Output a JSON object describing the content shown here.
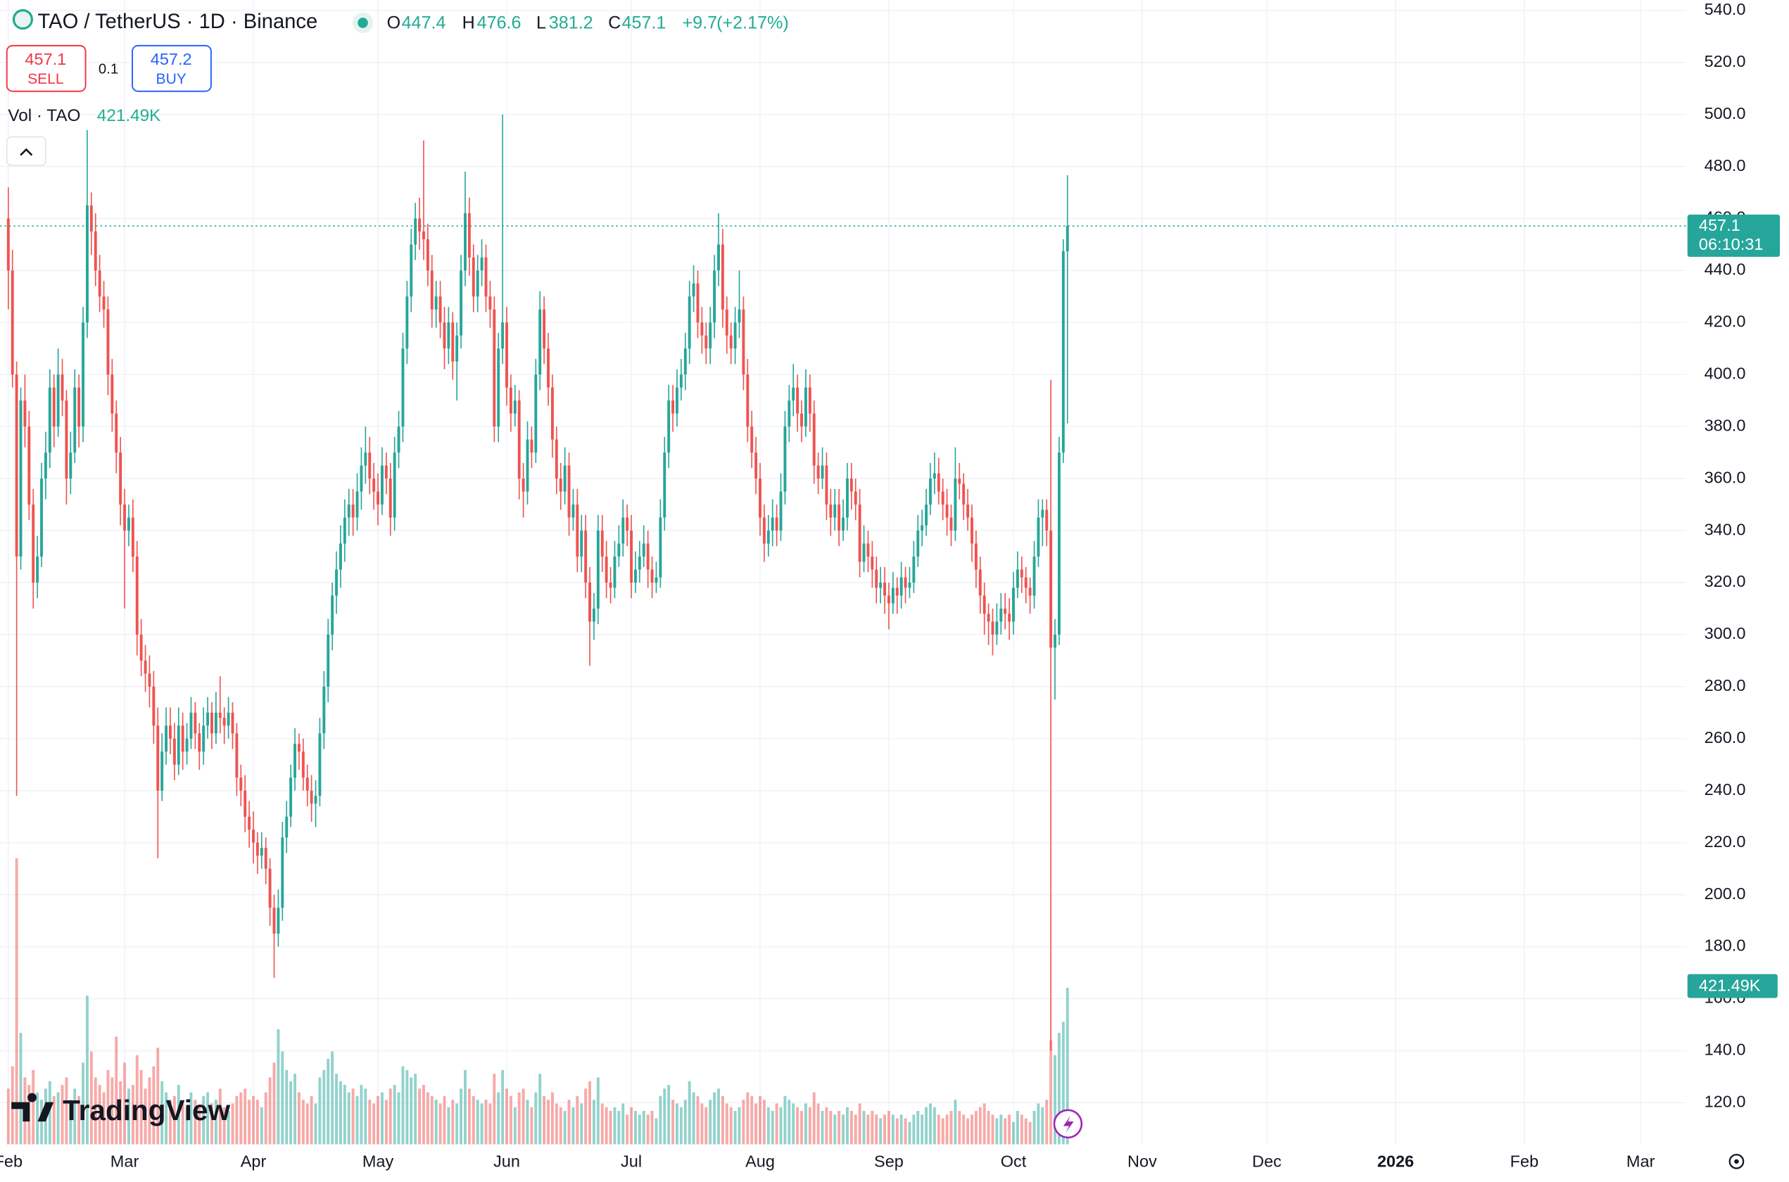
{
  "chart_data": {
    "type": "candlestick",
    "title": "TAO / TetherUS · 1D · Binance",
    "ohlc_labels": [
      "O",
      "H",
      "L",
      "C"
    ],
    "change": "+9.7",
    "change_pct": "(+2.17%)",
    "sell_label": "SELL",
    "buy_label": "BUY",
    "buy_price": "457.2",
    "quantity": "0.1",
    "volume_title": "Vol · TAO",
    "volume_last_label": "421.49K",
    "countdown": "06:10:31",
    "brand": "TradingView",
    "up_color": "#26a69a",
    "down_color": "#ef5350",
    "grid": true,
    "xlim": [
      -2,
      404
    ],
    "xticks": [
      {
        "value": 0,
        "label": "Feb"
      },
      {
        "value": 28,
        "label": "Mar"
      },
      {
        "value": 59,
        "label": "Apr"
      },
      {
        "value": 89,
        "label": "May"
      },
      {
        "value": 120,
        "label": "Jun"
      },
      {
        "value": 150,
        "label": "Jul"
      },
      {
        "value": 181,
        "label": "Aug"
      },
      {
        "value": 212,
        "label": "Sep"
      },
      {
        "value": 242,
        "label": "Oct"
      },
      {
        "value": 273,
        "label": "Nov"
      },
      {
        "value": 303,
        "label": "Dec"
      },
      {
        "value": 334,
        "label": "2026",
        "bold": true
      },
      {
        "value": 365,
        "label": "Feb"
      },
      {
        "value": 393,
        "label": "Mar"
      }
    ],
    "ylim": [
      104,
      544
    ],
    "yticks": [
      {
        "value": 120,
        "label": "120.0"
      },
      {
        "value": 140,
        "label": "140.0"
      },
      {
        "value": 160,
        "label": "160.0"
      },
      {
        "value": 180,
        "label": "180.0"
      },
      {
        "value": 200,
        "label": "200.0"
      },
      {
        "value": 220,
        "label": "220.0"
      },
      {
        "value": 240,
        "label": "240.0"
      },
      {
        "value": 260,
        "label": "260.0"
      },
      {
        "value": 280,
        "label": "280.0"
      },
      {
        "value": 300,
        "label": "300.0"
      },
      {
        "value": 320,
        "label": "320.0"
      },
      {
        "value": 340,
        "label": "340.0"
      },
      {
        "value": 360,
        "label": "360.0"
      },
      {
        "value": 380,
        "label": "380.0"
      },
      {
        "value": 400,
        "label": "400.0"
      },
      {
        "value": 420,
        "label": "420.0"
      },
      {
        "value": 440,
        "label": "440.0"
      },
      {
        "value": 460,
        "label": "460.0"
      },
      {
        "value": 480,
        "label": "480.0"
      },
      {
        "value": 500,
        "label": "500.0"
      },
      {
        "value": 520,
        "label": "520.0"
      },
      {
        "value": 540,
        "label": "540.0"
      }
    ],
    "y2lim": [
      0,
      3080000
    ],
    "open": [
      460,
      440,
      400,
      330,
      390,
      380,
      350,
      320,
      330,
      360,
      370,
      395,
      380,
      400,
      390,
      360,
      370,
      395,
      380,
      420,
      465,
      455,
      440,
      430,
      425,
      400,
      385,
      370,
      350,
      340,
      345,
      330,
      300,
      290,
      285,
      280,
      265,
      240,
      255,
      265,
      260,
      250,
      265,
      255,
      260,
      270,
      262,
      255,
      265,
      270,
      262,
      270,
      268,
      265,
      270,
      262,
      245,
      240,
      230,
      225,
      220,
      215,
      218,
      210,
      195,
      185,
      195,
      222,
      230,
      245,
      258,
      255,
      245,
      240,
      235,
      238,
      262,
      280,
      300,
      315,
      325,
      335,
      345,
      350,
      345,
      355,
      365,
      370,
      360,
      355,
      350,
      365,
      360,
      345,
      370,
      380,
      410,
      430,
      450,
      460,
      455,
      452,
      440,
      425,
      430,
      420,
      410,
      420,
      405,
      415,
      440,
      462,
      445,
      430,
      440,
      445,
      430,
      425,
      380,
      410,
      420,
      395,
      385,
      390,
      360,
      355,
      375,
      370,
      400,
      425,
      410,
      395,
      375,
      360,
      355,
      365,
      345,
      350,
      330,
      340,
      320,
      305,
      310,
      340,
      330,
      320,
      318,
      330,
      335,
      345,
      340,
      320,
      325,
      330,
      335,
      325,
      320,
      322,
      345,
      370,
      390,
      385,
      395,
      400,
      410,
      430,
      435,
      420,
      415,
      410,
      420,
      440,
      450,
      425,
      415,
      410,
      420,
      425,
      400,
      380,
      370,
      360,
      345,
      335,
      340,
      345,
      340,
      355,
      380,
      390,
      395,
      385,
      380,
      395,
      385,
      365,
      360,
      365,
      350,
      345,
      350,
      340,
      345,
      360,
      355,
      350,
      328,
      335,
      330,
      325,
      318,
      320,
      315,
      312,
      318,
      315,
      322,
      318,
      320,
      330,
      340,
      342,
      350,
      360,
      362,
      355,
      350,
      345,
      340,
      360,
      358,
      350,
      345,
      335,
      325,
      315,
      308,
      305,
      300,
      305,
      310,
      308,
      305,
      318,
      325,
      322,
      318,
      315,
      330,
      345,
      348,
      340,
      295,
      300,
      370,
      447.4
    ],
    "high": [
      472,
      448,
      405,
      395,
      400,
      386,
      356,
      338,
      366,
      378,
      402,
      400,
      410,
      406,
      394,
      378,
      402,
      400,
      426,
      494,
      470,
      462,
      446,
      436,
      430,
      406,
      390,
      376,
      356,
      350,
      352,
      336,
      306,
      296,
      292,
      286,
      272,
      262,
      272,
      272,
      266,
      272,
      270,
      266,
      276,
      274,
      266,
      272,
      276,
      274,
      278,
      284,
      272,
      276,
      274,
      266,
      250,
      246,
      236,
      232,
      224,
      224,
      222,
      214,
      200,
      202,
      228,
      236,
      250,
      264,
      262,
      260,
      250,
      246,
      244,
      268,
      286,
      306,
      320,
      332,
      342,
      352,
      356,
      356,
      362,
      372,
      380,
      376,
      366,
      362,
      372,
      370,
      366,
      376,
      386,
      416,
      436,
      456,
      466,
      468,
      490,
      458,
      446,
      436,
      436,
      426,
      426,
      424,
      420,
      446,
      478,
      468,
      450,
      446,
      452,
      450,
      436,
      430,
      416,
      500,
      426,
      400,
      396,
      394,
      366,
      382,
      380,
      406,
      432,
      430,
      416,
      400,
      380,
      366,
      372,
      370,
      356,
      356,
      346,
      346,
      326,
      316,
      346,
      346,
      336,
      326,
      336,
      342,
      352,
      350,
      346,
      332,
      336,
      342,
      340,
      330,
      328,
      352,
      376,
      396,
      396,
      402,
      406,
      416,
      436,
      442,
      440,
      426,
      420,
      426,
      446,
      462,
      456,
      430,
      420,
      426,
      440,
      430,
      406,
      386,
      376,
      366,
      350,
      346,
      352,
      350,
      362,
      386,
      396,
      404,
      400,
      390,
      402,
      400,
      390,
      370,
      372,
      370,
      356,
      356,
      356,
      352,
      366,
      366,
      360,
      356,
      342,
      340,
      336,
      330,
      326,
      326,
      320,
      324,
      322,
      328,
      326,
      326,
      336,
      346,
      348,
      356,
      366,
      370,
      368,
      360,
      356,
      350,
      372,
      366,
      362,
      356,
      350,
      340,
      330,
      320,
      312,
      310,
      312,
      316,
      316,
      314,
      324,
      332,
      330,
      326,
      322,
      336,
      352,
      352,
      352,
      398,
      306,
      376,
      452,
      476.6
    ],
    "low": [
      425,
      395,
      238,
      325,
      372,
      344,
      310,
      314,
      326,
      352,
      364,
      372,
      376,
      384,
      350,
      354,
      366,
      372,
      374,
      414,
      446,
      434,
      424,
      418,
      392,
      378,
      362,
      342,
      310,
      334,
      324,
      292,
      284,
      278,
      272,
      258,
      214,
      236,
      250,
      254,
      244,
      246,
      248,
      250,
      256,
      256,
      248,
      250,
      260,
      256,
      258,
      262,
      258,
      260,
      256,
      238,
      234,
      224,
      218,
      212,
      208,
      210,
      204,
      188,
      168,
      180,
      190,
      216,
      226,
      240,
      248,
      240,
      234,
      228,
      226,
      234,
      256,
      274,
      294,
      308,
      318,
      328,
      338,
      338,
      340,
      348,
      358,
      354,
      348,
      342,
      346,
      354,
      338,
      340,
      364,
      374,
      404,
      424,
      444,
      448,
      444,
      434,
      418,
      418,
      414,
      402,
      404,
      398,
      390,
      410,
      434,
      438,
      424,
      424,
      434,
      424,
      418,
      374,
      374,
      404,
      388,
      378,
      380,
      352,
      345,
      350,
      364,
      366,
      394,
      404,
      388,
      368,
      354,
      348,
      350,
      338,
      340,
      324,
      324,
      314,
      288,
      298,
      304,
      324,
      314,
      312,
      314,
      326,
      330,
      334,
      314,
      316,
      320,
      326,
      318,
      314,
      316,
      318,
      340,
      364,
      378,
      380,
      390,
      394,
      404,
      424,
      414,
      408,
      404,
      404,
      414,
      434,
      418,
      408,
      404,
      404,
      414,
      394,
      374,
      364,
      354,
      338,
      328,
      330,
      334,
      334,
      336,
      350,
      374,
      384,
      378,
      374,
      376,
      378,
      358,
      354,
      356,
      344,
      338,
      340,
      334,
      336,
      340,
      348,
      344,
      322,
      324,
      324,
      318,
      312,
      312,
      308,
      302,
      308,
      308,
      310,
      312,
      314,
      316,
      326,
      334,
      338,
      346,
      354,
      350,
      344,
      338,
      334,
      336,
      352,
      344,
      340,
      328,
      318,
      308,
      300,
      296,
      292,
      296,
      300,
      302,
      298,
      300,
      314,
      316,
      312,
      308,
      310,
      326,
      334,
      334,
      140,
      275,
      296,
      366,
      381.2
    ],
    "close": [
      440,
      400,
      330,
      390,
      380,
      350,
      320,
      330,
      360,
      370,
      395,
      380,
      400,
      390,
      360,
      370,
      395,
      380,
      420,
      465,
      455,
      440,
      430,
      425,
      400,
      385,
      370,
      350,
      340,
      345,
      330,
      300,
      290,
      285,
      280,
      265,
      240,
      255,
      265,
      260,
      250,
      265,
      255,
      260,
      270,
      262,
      255,
      265,
      270,
      262,
      270,
      268,
      265,
      270,
      262,
      245,
      240,
      230,
      225,
      220,
      215,
      218,
      210,
      195,
      185,
      195,
      222,
      230,
      245,
      258,
      255,
      245,
      240,
      235,
      238,
      262,
      280,
      300,
      315,
      325,
      335,
      345,
      350,
      345,
      355,
      365,
      370,
      360,
      355,
      350,
      365,
      360,
      345,
      370,
      380,
      410,
      430,
      450,
      460,
      455,
      452,
      440,
      425,
      430,
      420,
      410,
      420,
      405,
      415,
      440,
      462,
      445,
      430,
      440,
      445,
      430,
      425,
      380,
      410,
      420,
      395,
      385,
      390,
      360,
      355,
      375,
      370,
      400,
      425,
      410,
      395,
      375,
      360,
      355,
      365,
      345,
      350,
      330,
      340,
      320,
      305,
      310,
      340,
      330,
      320,
      318,
      330,
      335,
      345,
      340,
      320,
      325,
      330,
      335,
      325,
      320,
      322,
      345,
      370,
      390,
      385,
      395,
      400,
      410,
      430,
      435,
      420,
      415,
      410,
      420,
      440,
      450,
      425,
      415,
      410,
      420,
      425,
      400,
      380,
      370,
      360,
      345,
      335,
      340,
      345,
      340,
      355,
      380,
      390,
      395,
      385,
      380,
      395,
      385,
      365,
      360,
      365,
      350,
      345,
      350,
      340,
      345,
      360,
      355,
      350,
      328,
      335,
      330,
      325,
      318,
      320,
      315,
      312,
      318,
      315,
      322,
      318,
      320,
      330,
      340,
      342,
      350,
      360,
      362,
      355,
      350,
      345,
      340,
      360,
      358,
      350,
      345,
      335,
      325,
      315,
      308,
      305,
      300,
      305,
      310,
      308,
      305,
      318,
      325,
      322,
      318,
      315,
      330,
      345,
      348,
      340,
      295,
      300,
      370,
      447.4,
      457.1
    ],
    "volume": [
      150000,
      210000,
      770000,
      300000,
      180000,
      160000,
      200000,
      140000,
      120000,
      150000,
      170000,
      130000,
      140000,
      160000,
      180000,
      120000,
      150000,
      130000,
      220000,
      400000,
      250000,
      180000,
      160000,
      140000,
      200000,
      180000,
      290000,
      170000,
      220000,
      150000,
      160000,
      240000,
      200000,
      150000,
      180000,
      210000,
      260000,
      170000,
      140000,
      120000,
      130000,
      160000,
      110000,
      100000,
      140000,
      120000,
      100000,
      130000,
      140000,
      110000,
      120000,
      150000,
      100000,
      90000,
      110000,
      130000,
      140000,
      150000,
      120000,
      130000,
      120000,
      100000,
      140000,
      180000,
      220000,
      310000,
      250000,
      200000,
      170000,
      190000,
      140000,
      120000,
      110000,
      130000,
      110000,
      180000,
      200000,
      230000,
      250000,
      190000,
      170000,
      160000,
      140000,
      150000,
      130000,
      160000,
      150000,
      120000,
      110000,
      130000,
      140000,
      120000,
      150000,
      160000,
      140000,
      210000,
      200000,
      180000,
      190000,
      150000,
      160000,
      140000,
      130000,
      120000,
      110000,
      130000,
      100000,
      120000,
      110000,
      150000,
      200000,
      150000,
      130000,
      120000,
      110000,
      120000,
      110000,
      190000,
      140000,
      200000,
      150000,
      130000,
      100000,
      140000,
      150000,
      120000,
      100000,
      140000,
      190000,
      130000,
      120000,
      140000,
      110000,
      100000,
      90000,
      120000,
      100000,
      130000,
      110000,
      150000,
      170000,
      120000,
      180000,
      110000,
      100000,
      90000,
      100000,
      90000,
      110000,
      80000,
      100000,
      90000,
      80000,
      90000,
      80000,
      90000,
      70000,
      130000,
      150000,
      160000,
      120000,
      110000,
      100000,
      120000,
      170000,
      140000,
      130000,
      110000,
      100000,
      120000,
      140000,
      150000,
      130000,
      110000,
      100000,
      90000,
      100000,
      120000,
      140000,
      130000,
      110000,
      130000,
      120000,
      100000,
      90000,
      110000,
      100000,
      130000,
      120000,
      110000,
      100000,
      90000,
      110000,
      100000,
      140000,
      110000,
      90000,
      100000,
      90000,
      80000,
      90000,
      80000,
      100000,
      90000,
      80000,
      110000,
      90000,
      80000,
      90000,
      80000,
      70000,
      80000,
      90000,
      80000,
      70000,
      80000,
      70000,
      60000,
      80000,
      90000,
      80000,
      100000,
      110000,
      100000,
      80000,
      70000,
      80000,
      90000,
      120000,
      90000,
      80000,
      70000,
      80000,
      90000,
      100000,
      110000,
      90000,
      80000,
      70000,
      80000,
      70000,
      80000,
      60000,
      90000,
      80000,
      70000,
      60000,
      90000,
      110000,
      100000,
      120000,
      280000,
      240000,
      300000,
      330000,
      421490
    ]
  }
}
